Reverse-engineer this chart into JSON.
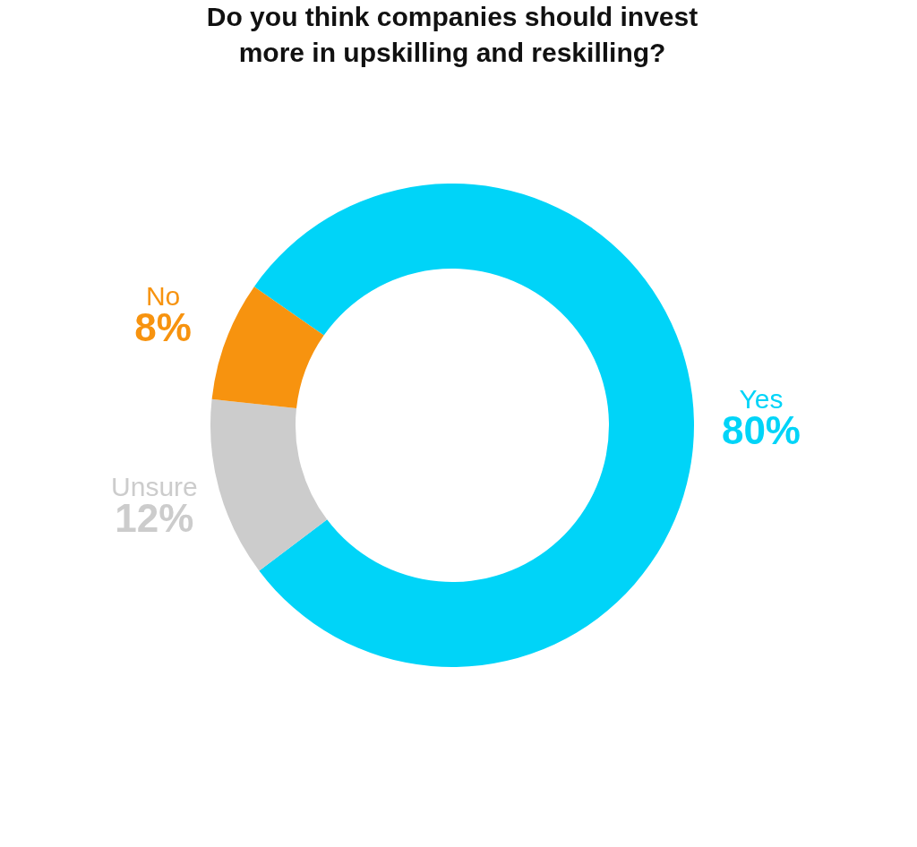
{
  "chart_data": {
    "type": "donut",
    "title": "Do you think companies should invest more in upskilling and reskilling?",
    "categories": [
      "Yes",
      "Unsure",
      "No"
    ],
    "values": [
      80,
      12,
      8
    ],
    "value_labels": [
      "80%",
      "12%",
      "8%"
    ],
    "colors": [
      "#00d4f8",
      "#cccccc",
      "#f7930f"
    ]
  }
}
